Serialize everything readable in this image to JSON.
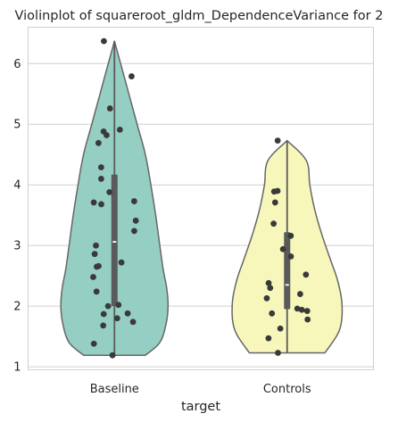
{
  "chart_data": {
    "type": "violin",
    "title": "Violinplot of squareroot_gldm_DependenceVariance for 2",
    "xlabel": "target",
    "ylabel": "",
    "categories": [
      "Baseline",
      "Controls"
    ],
    "ylim": [
      0.95,
      6.6
    ],
    "yticks": [
      1,
      2,
      3,
      4,
      5,
      6
    ],
    "grid": "horizontal",
    "colors": {
      "Baseline": "#95cec2",
      "Controls": "#f8f7bb",
      "outline": "#666666",
      "points": "#3a3a3a",
      "grid": "#d0d0d0",
      "box": "#5a5a5a"
    },
    "violins": [
      {
        "name": "Baseline",
        "min": 1.19,
        "max": 6.37,
        "q1": 2.0,
        "median": 3.06,
        "q3": 4.17,
        "profile": [
          [
            1.19,
            0.45
          ],
          [
            1.4,
            0.66
          ],
          [
            1.7,
            0.75
          ],
          [
            2.0,
            0.78
          ],
          [
            2.3,
            0.76
          ],
          [
            2.6,
            0.71
          ],
          [
            3.0,
            0.66
          ],
          [
            3.5,
            0.6
          ],
          [
            4.0,
            0.53
          ],
          [
            4.5,
            0.45
          ],
          [
            5.0,
            0.33
          ],
          [
            5.5,
            0.21
          ],
          [
            6.0,
            0.09
          ],
          [
            6.37,
            0.0
          ]
        ],
        "points": [
          1.19,
          1.38,
          1.68,
          1.74,
          1.8,
          1.87,
          1.88,
          2.0,
          2.02,
          2.24,
          2.48,
          2.65,
          2.66,
          2.72,
          2.86,
          3.0,
          3.24,
          3.41,
          3.68,
          3.71,
          3.73,
          3.88,
          4.1,
          4.29,
          4.69,
          4.82,
          4.88,
          4.91,
          5.26,
          5.79,
          6.37
        ]
      },
      {
        "name": "Controls",
        "min": 1.23,
        "max": 4.73,
        "q1": 1.95,
        "median": 2.35,
        "q3": 3.22,
        "profile": [
          [
            1.23,
            0.55
          ],
          [
            1.6,
            0.76
          ],
          [
            2.0,
            0.8
          ],
          [
            2.4,
            0.74
          ],
          [
            2.8,
            0.62
          ],
          [
            3.2,
            0.5
          ],
          [
            3.6,
            0.4
          ],
          [
            4.0,
            0.33
          ],
          [
            4.4,
            0.28
          ],
          [
            4.73,
            0.0
          ]
        ],
        "points": [
          1.23,
          1.47,
          1.63,
          1.78,
          1.88,
          1.92,
          1.94,
          1.96,
          2.13,
          2.2,
          2.3,
          2.38,
          2.52,
          2.82,
          2.94,
          3.16,
          3.36,
          3.71,
          3.89,
          3.9,
          4.73
        ]
      }
    ]
  }
}
